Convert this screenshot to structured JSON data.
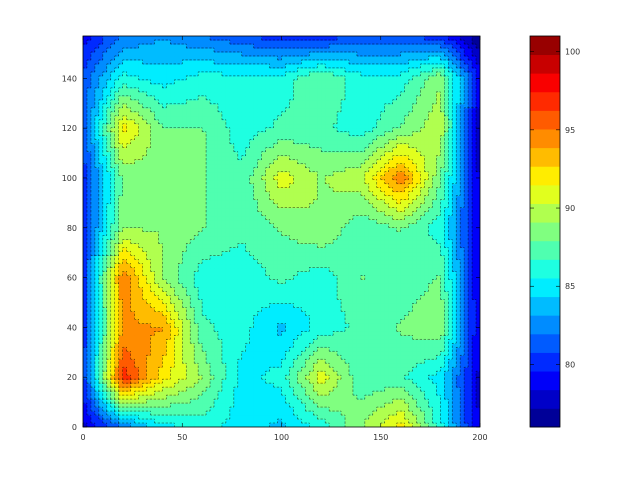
{
  "chart_data": {
    "type": "heatmap",
    "subtype": "filled-contour",
    "title": "",
    "xlabel": "",
    "ylabel": "",
    "xlim": [
      0,
      200
    ],
    "ylim": [
      0,
      157
    ],
    "x_ticks": [
      "0",
      "50",
      "100",
      "150",
      "200"
    ],
    "y_ticks": [
      "0",
      "20",
      "40",
      "60",
      "80",
      "100",
      "120",
      "140"
    ],
    "colorbar": {
      "range": [
        76,
        101
      ],
      "tick_values": [
        80,
        85,
        90,
        95,
        100
      ],
      "tick_labels": [
        "80",
        "85",
        "90",
        "95",
        "100"
      ],
      "levels": 21,
      "colormap": "jet"
    },
    "contour_lines": {
      "style": "dashed",
      "color": "#000000"
    },
    "grid_x": [
      0,
      20,
      40,
      60,
      80,
      100,
      120,
      140,
      160,
      180,
      200
    ],
    "grid_y": [
      0,
      20,
      40,
      60,
      80,
      100,
      120,
      140,
      157
    ],
    "z": [
      [
        78,
        82,
        85,
        86,
        85,
        84,
        86,
        89,
        92,
        86,
        78
      ],
      [
        80,
        97,
        92,
        89,
        85,
        86,
        91,
        87,
        87,
        85,
        78
      ],
      [
        80,
        94,
        94,
        87,
        86,
        84,
        86,
        87,
        88,
        89,
        78
      ],
      [
        80,
        95,
        89,
        86,
        86,
        87,
        86,
        88,
        87,
        88,
        78
      ],
      [
        80,
        89,
        89,
        88,
        87,
        88,
        89,
        87,
        88,
        86,
        78
      ],
      [
        80,
        88,
        89,
        88,
        87,
        91,
        89,
        90,
        95,
        88,
        78
      ],
      [
        81,
        92,
        88,
        88,
        86,
        87,
        87,
        86,
        88,
        90,
        77
      ],
      [
        81,
        86,
        85,
        86,
        86,
        86,
        88,
        86,
        86,
        89,
        79
      ],
      [
        79,
        82,
        83,
        82,
        81,
        80,
        80,
        81,
        81,
        80,
        76
      ]
    ]
  }
}
